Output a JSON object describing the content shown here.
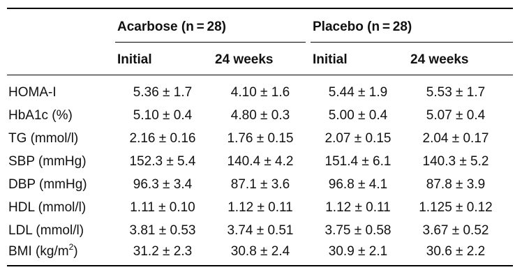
{
  "header": {
    "group1": "Acarbose (n = 28)",
    "group2": "Placebo (n = 28)",
    "sub": [
      "Initial",
      "24 weeks",
      "Initial",
      "24 weeks"
    ]
  },
  "rows": [
    {
      "label": "HOMA-I",
      "cells": [
        "5.36 ± 1.7",
        "4.10 ± 1.6",
        "5.44 ± 1.9",
        "5.53 ± 1.7"
      ]
    },
    {
      "label": "HbA1c (%)",
      "cells": [
        "5.10 ± 0.4",
        "4.80 ± 0.3",
        "5.00 ± 0.4",
        "5.07 ± 0.4"
      ]
    },
    {
      "label": "TG (mmol/l)",
      "cells": [
        "2.16 ± 0.16",
        "1.76 ± 0.15",
        "2.07 ± 0.15",
        "2.04 ± 0.17"
      ]
    },
    {
      "label": "SBP (mmHg)",
      "cells": [
        "152.3 ± 5.4",
        "140.4 ± 4.2",
        "151.4 ± 6.1",
        "140.3 ± 5.2"
      ]
    },
    {
      "label": "DBP (mmHg)",
      "cells": [
        "96.3 ± 3.4",
        "87.1 ± 3.6",
        "96.8 ± 4.1",
        "87.8 ± 3.9"
      ]
    },
    {
      "label": "HDL (mmol/l)",
      "cells": [
        "1.11 ± 0.10",
        "1.12 ± 0.11",
        "1.12 ± 0.11",
        "1.125 ± 0.12"
      ]
    },
    {
      "label": "LDL (mmol/l)",
      "cells": [
        "3.81 ± 0.53",
        "3.74 ± 0.51",
        "3.75 ± 0.58",
        "3.67 ± 0.52"
      ]
    },
    {
      "label_prefix": "BMI (kg/m",
      "label_sup": "2",
      "label_suffix": ")",
      "cells": [
        "31.2 ± 2.3",
        "30.8 ± 2.4",
        "30.9 ± 2.1",
        "30.6 ± 2.2"
      ]
    }
  ]
}
